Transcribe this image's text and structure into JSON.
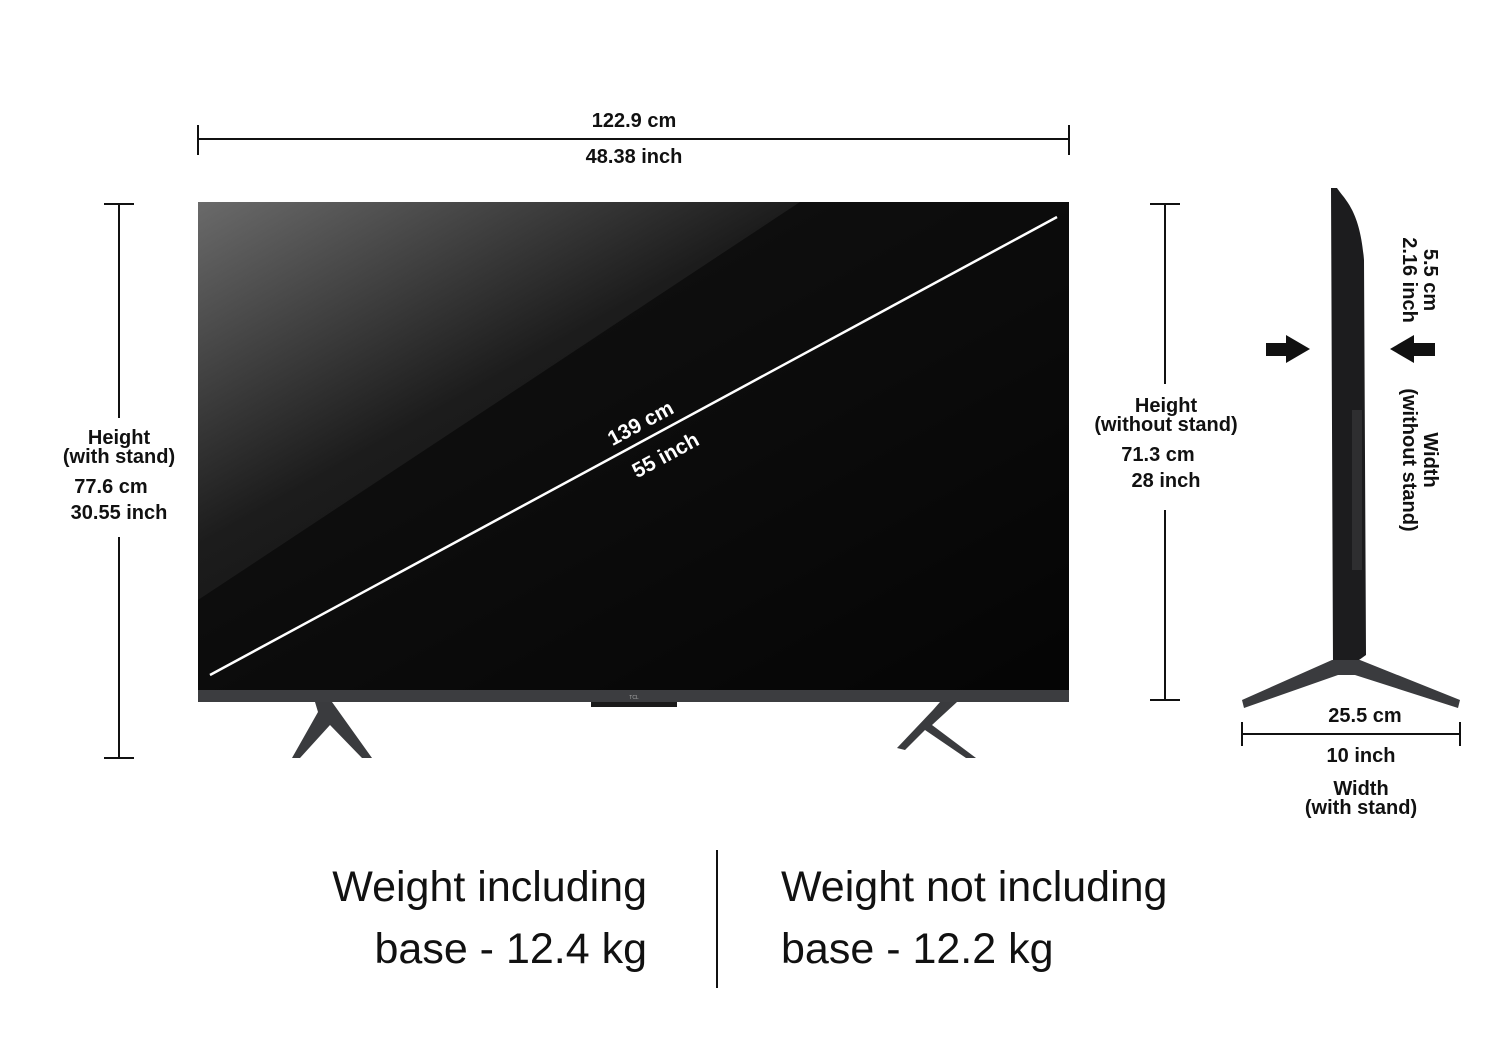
{
  "top_width": {
    "cm": "122.9 cm",
    "inch": "48.38 inch"
  },
  "diagonal": {
    "cm": "139 cm",
    "inch": "55 inch"
  },
  "height_with_stand": {
    "title": "Height",
    "subtitle": "(with stand)",
    "cm": "77.6 cm",
    "inch": "30.55 inch"
  },
  "height_without_stand": {
    "title": "Height",
    "subtitle": "(without stand)",
    "cm": "71.3 cm",
    "inch": "28 inch"
  },
  "depth_without_stand": {
    "cm": "5.5 cm",
    "inch": "2.16 inch",
    "title": "Width",
    "subtitle": "(without stand)"
  },
  "depth_with_stand": {
    "cm": "25.5 cm",
    "inch": "10 inch",
    "title": "Width",
    "subtitle": "(with stand)"
  },
  "logo": "TCL",
  "weights": {
    "with_base": [
      "Weight including",
      "base - 12.4 kg"
    ],
    "without_base": [
      "Weight not including",
      "base - 12.2 kg"
    ]
  },
  "colors": {
    "line": "#111111",
    "screen": "#050505",
    "stand": "#3a3b3e"
  }
}
